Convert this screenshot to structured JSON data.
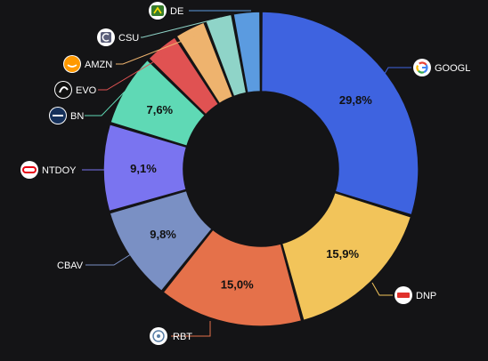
{
  "chart_data": {
    "type": "pie",
    "variant": "donut",
    "background": "#141416",
    "text_color": "#ffffff",
    "label_color": "#111111",
    "slices": [
      {
        "label": "GOOGL",
        "value": 29.8,
        "value_label": "29,8%",
        "color": "#3e63e0",
        "icon": "google-logo-icon"
      },
      {
        "label": "DNP",
        "value": 15.9,
        "value_label": "15,9%",
        "color": "#f2c45a",
        "icon": "dino-logo-icon"
      },
      {
        "label": "RBT",
        "value": 15.0,
        "value_label": "15,0%",
        "color": "#e5714a",
        "icon": "rbt-logo-icon"
      },
      {
        "label": "CBAV",
        "value": 9.8,
        "value_label": "9,8%",
        "color": "#7a90c4",
        "icon": ""
      },
      {
        "label": "NTDOY",
        "value": 9.1,
        "value_label": "9,1%",
        "color": "#7a74f0",
        "icon": "nintendo-logo-icon"
      },
      {
        "label": "BN",
        "value": 7.6,
        "value_label": "7,6%",
        "color": "#5fd9b5",
        "icon": "brookfield-logo-icon"
      },
      {
        "label": "EVO",
        "value": 3.6,
        "value_label": "",
        "color": "#e05252",
        "icon": "evo-logo-icon"
      },
      {
        "label": "AMZN",
        "value": 3.3,
        "value_label": "",
        "color": "#eeb36e",
        "icon": "amazon-logo-icon"
      },
      {
        "label": "CSU",
        "value": 2.9,
        "value_label": "",
        "color": "#8fd4c8",
        "icon": "csu-logo-icon"
      },
      {
        "label": "DE",
        "value": 2.9,
        "value_label": "",
        "color": "#5b9be0",
        "icon": "john-deere-logo-icon"
      }
    ]
  }
}
